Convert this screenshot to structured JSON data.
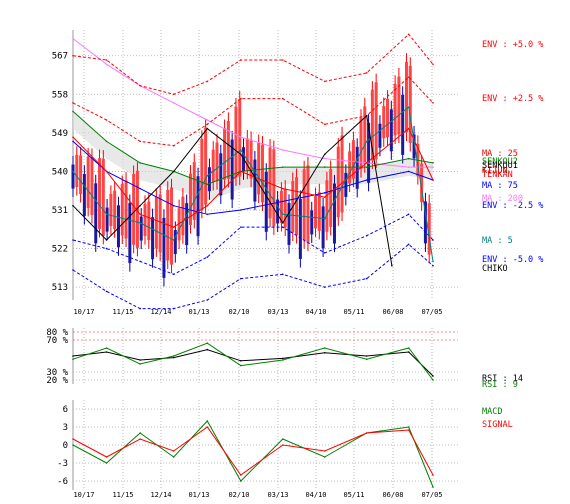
{
  "chart_data": [
    {
      "type": "line",
      "panel": "price",
      "ylim": [
        510,
        573
      ],
      "y_ticks": [
        "567",
        "558",
        "549",
        "540",
        "531",
        "522",
        "513"
      ],
      "y_tick_values": [
        567,
        558,
        549,
        540,
        531,
        522,
        513
      ],
      "x_ticks": [
        "10/17",
        "11/15",
        "12/14",
        "01/13",
        "02/10",
        "03/13",
        "04/10",
        "05/11",
        "06/08",
        "07/05"
      ],
      "grid": true,
      "legend": [
        {
          "label": "ENV : +5.0 %",
          "color": "#ff0000"
        },
        {
          "label": "ENV : +2.5 %",
          "color": "#ff0000"
        },
        {
          "label": "MA : 25",
          "color": "#ff0000"
        },
        {
          "label": "SENKOU2",
          "color": "#008000"
        },
        {
          "label": "SENKOU1",
          "color": "#000000"
        },
        {
          "label": "KIJUN",
          "color": "#8b0000"
        },
        {
          "label": "TENKAN",
          "color": "#ff0000"
        },
        {
          "label": "MA : 75",
          "color": "#0000ff"
        },
        {
          "label": "MA : 200",
          "color": "#ff77ff"
        },
        {
          "label": "ENV : -2.5 %",
          "color": "#0000ff"
        },
        {
          "label": "MA : 5",
          "color": "#008080"
        },
        {
          "label": "ENV : -5.0 %",
          "color": "#0000ff"
        },
        {
          "label": "CHIKO",
          "color": "#000000"
        }
      ],
      "series": [
        {
          "name": "MA : 200",
          "color": "#ff77ff",
          "x": [
            0,
            40,
            80,
            120,
            160,
            200,
            250,
            300,
            350,
            400,
            429
          ],
          "values": [
            571,
            565,
            560,
            556,
            552,
            548,
            545,
            543,
            542,
            541,
            541
          ]
        },
        {
          "name": "MA : 75",
          "color": "#0000ff",
          "x": [
            0,
            40,
            80,
            120,
            160,
            200,
            250,
            300,
            350,
            400,
            429
          ],
          "values": [
            547,
            540,
            536,
            532,
            530,
            531,
            533,
            535,
            538,
            540,
            538
          ]
        },
        {
          "name": "ENV : +5.0 %",
          "color": "#ff0000",
          "dashed": true,
          "x": [
            0,
            40,
            80,
            120,
            160,
            200,
            250,
            300,
            350,
            400,
            429
          ],
          "values": [
            567,
            566,
            560,
            558,
            561,
            566,
            566,
            561,
            563,
            572,
            565
          ]
        },
        {
          "name": "ENV : +2.5 %",
          "color": "#ff0000",
          "dashed": true,
          "x": [
            0,
            40,
            80,
            120,
            160,
            200,
            250,
            300,
            350,
            400,
            429
          ],
          "values": [
            556,
            552,
            547,
            546,
            551,
            557,
            557,
            551,
            553,
            562,
            556
          ]
        },
        {
          "name": "ENV : -2.5 %",
          "color": "#0000ff",
          "dashed": true,
          "x": [
            0,
            40,
            80,
            120,
            160,
            200,
            250,
            300,
            350,
            400,
            429
          ],
          "values": [
            524,
            522,
            519,
            516,
            520,
            527,
            527,
            521,
            525,
            530,
            524
          ]
        },
        {
          "name": "ENV : -5.0 %",
          "color": "#0000ff",
          "dashed": true,
          "x": [
            0,
            40,
            80,
            120,
            160,
            200,
            250,
            300,
            350,
            400,
            429
          ],
          "values": [
            517,
            512,
            508,
            508,
            510,
            515,
            516,
            513,
            515,
            523,
            518
          ]
        },
        {
          "name": "SENKOU2",
          "color": "#008000",
          "x": [
            0,
            40,
            80,
            120,
            160,
            200,
            250,
            300,
            350,
            400,
            429
          ],
          "values": [
            554,
            547,
            542,
            540,
            537,
            540,
            541,
            541,
            541,
            543,
            542
          ]
        },
        {
          "name": "MA : 25",
          "color": "#ff0000",
          "x": [
            0,
            40,
            80,
            120,
            160,
            200,
            250,
            300,
            350,
            400,
            429
          ],
          "values": [
            548,
            540,
            530,
            527,
            532,
            540,
            536,
            534,
            542,
            550,
            538
          ]
        },
        {
          "name": "MA : 5",
          "color": "#008080",
          "x": [
            0,
            40,
            80,
            120,
            160,
            200,
            250,
            300,
            350,
            400,
            429
          ],
          "values": [
            540,
            530,
            528,
            524,
            539,
            545,
            530,
            529,
            547,
            555,
            519
          ]
        },
        {
          "name": "CHIKO",
          "color": "#000000",
          "x": [
            0,
            40,
            80,
            120,
            160,
            200,
            250,
            300,
            350,
            380
          ],
          "values": [
            532,
            524,
            532,
            540,
            550,
            544,
            528,
            544,
            553,
            518
          ]
        }
      ]
    },
    {
      "type": "line",
      "panel": "rsi",
      "ylim": [
        15,
        85
      ],
      "y_ticks": [
        "80 %",
        "70 %",
        "30 %",
        "20 %"
      ],
      "y_tick_values": [
        80,
        70,
        30,
        20
      ],
      "x_ticks": [
        "10/17",
        "11/15",
        "12/14",
        "01/13",
        "02/10",
        "03/13",
        "04/10",
        "05/11",
        "06/08",
        "07/05"
      ],
      "legend": [
        {
          "label": "RSI : 14",
          "color": "#000000"
        },
        {
          "label": "RSI : 9",
          "color": "#008000"
        }
      ],
      "series": [
        {
          "name": "RSI : 14",
          "color": "#000000",
          "x": [
            0,
            40,
            80,
            120,
            160,
            200,
            250,
            300,
            350,
            400,
            429
          ],
          "values": [
            50,
            55,
            45,
            48,
            58,
            44,
            47,
            54,
            50,
            55,
            25
          ]
        },
        {
          "name": "RSI : 9",
          "color": "#008000",
          "x": [
            0,
            40,
            80,
            120,
            160,
            200,
            250,
            300,
            350,
            400,
            429
          ],
          "values": [
            46,
            60,
            40,
            50,
            66,
            38,
            45,
            60,
            46,
            60,
            20
          ]
        }
      ]
    },
    {
      "type": "line",
      "panel": "macd",
      "ylim": [
        -7.5,
        7.5
      ],
      "y_ticks": [
        "6",
        "3",
        "0",
        "-3",
        "-6"
      ],
      "y_tick_values": [
        6,
        3,
        0,
        -3,
        -6
      ],
      "x_ticks": [
        "10/17",
        "11/15",
        "12/14",
        "01/13",
        "02/10",
        "03/13",
        "04/10",
        "05/11",
        "06/08",
        "07/05"
      ],
      "legend": [
        {
          "label": "MACD",
          "color": "#008000"
        },
        {
          "label": "SIGNAL",
          "color": "#ff0000"
        }
      ],
      "series": [
        {
          "name": "MACD",
          "color": "#008000",
          "x": [
            0,
            40,
            80,
            120,
            160,
            200,
            250,
            300,
            350,
            400,
            429
          ],
          "values": [
            0,
            -3,
            2,
            -2,
            4,
            -6,
            1,
            -2,
            2,
            3,
            -7
          ]
        },
        {
          "name": "SIGNAL",
          "color": "#ff0000",
          "x": [
            0,
            40,
            80,
            120,
            160,
            200,
            250,
            300,
            350,
            400,
            429
          ],
          "values": [
            1,
            -2,
            1,
            -1,
            3,
            -5,
            0,
            -1,
            2,
            2.5,
            -5
          ]
        }
      ]
    }
  ]
}
